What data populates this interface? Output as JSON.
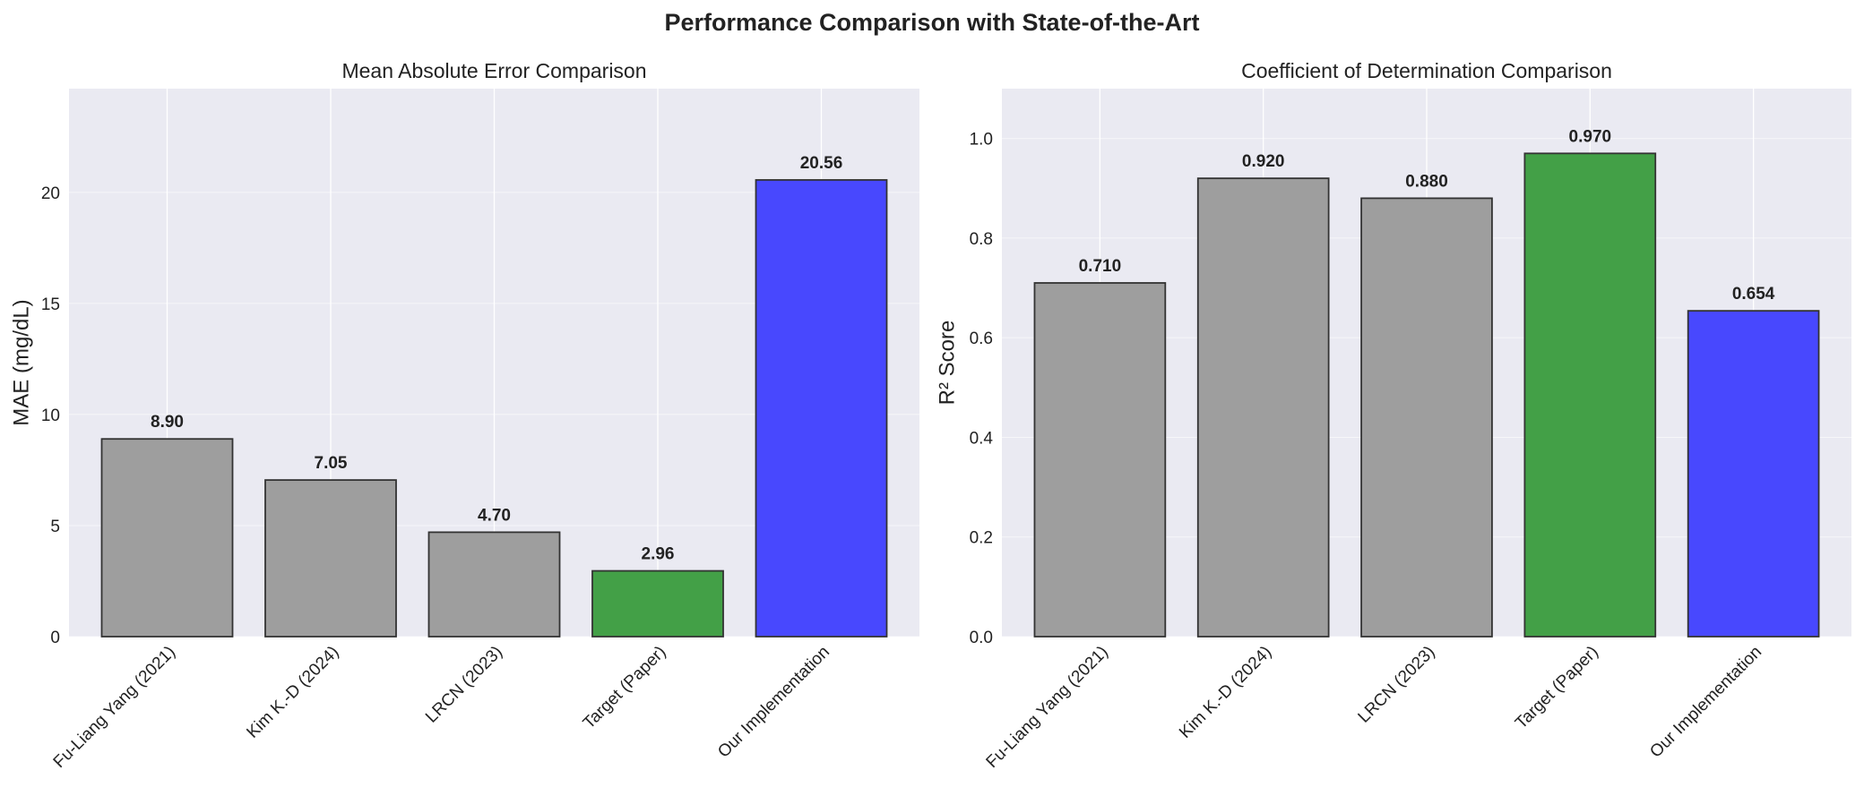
{
  "figure": {
    "title": "Performance Comparison with State-of-the-Art"
  },
  "colors": {
    "background": "#eaeaf2",
    "grid": "#ffffff",
    "baseline": "#9e9e9e",
    "target": "#43a047",
    "ours": "#4848fe",
    "edge": "#333333"
  },
  "chart_data": [
    {
      "type": "bar",
      "title": "Mean Absolute Error Comparison",
      "xlabel": "",
      "ylabel": "MAE (mg/dL)",
      "categories": [
        "Fu-Liang Yang (2021)",
        "Kim K.-D (2024)",
        "LRCN (2023)",
        "Target (Paper)",
        "Our Implementation"
      ],
      "values": [
        8.9,
        7.05,
        4.7,
        2.96,
        20.56
      ],
      "value_labels": [
        "8.90",
        "7.05",
        "4.70",
        "2.96",
        "20.56"
      ],
      "bar_colors": [
        "baseline",
        "baseline",
        "baseline",
        "target",
        "ours"
      ],
      "yticks": [
        0,
        5,
        10,
        15,
        20
      ],
      "ytick_labels": [
        "0",
        "5",
        "10",
        "15",
        "20"
      ],
      "ylim": [
        0,
        24.67
      ],
      "grid": true
    },
    {
      "type": "bar",
      "title": "Coefficient of Determination Comparison",
      "xlabel": "",
      "ylabel": "R² Score",
      "categories": [
        "Fu-Liang Yang (2021)",
        "Kim K.-D (2024)",
        "LRCN (2023)",
        "Target (Paper)",
        "Our Implementation"
      ],
      "values": [
        0.71,
        0.92,
        0.88,
        0.97,
        0.654
      ],
      "value_labels": [
        "0.710",
        "0.920",
        "0.880",
        "0.970",
        "0.654"
      ],
      "bar_colors": [
        "baseline",
        "baseline",
        "baseline",
        "target",
        "ours"
      ],
      "yticks": [
        0.0,
        0.2,
        0.4,
        0.6,
        0.8,
        1.0
      ],
      "ytick_labels": [
        "0.0",
        "0.2",
        "0.4",
        "0.6",
        "0.8",
        "1.0"
      ],
      "ylim": [
        0,
        1.1
      ],
      "grid": true
    }
  ]
}
